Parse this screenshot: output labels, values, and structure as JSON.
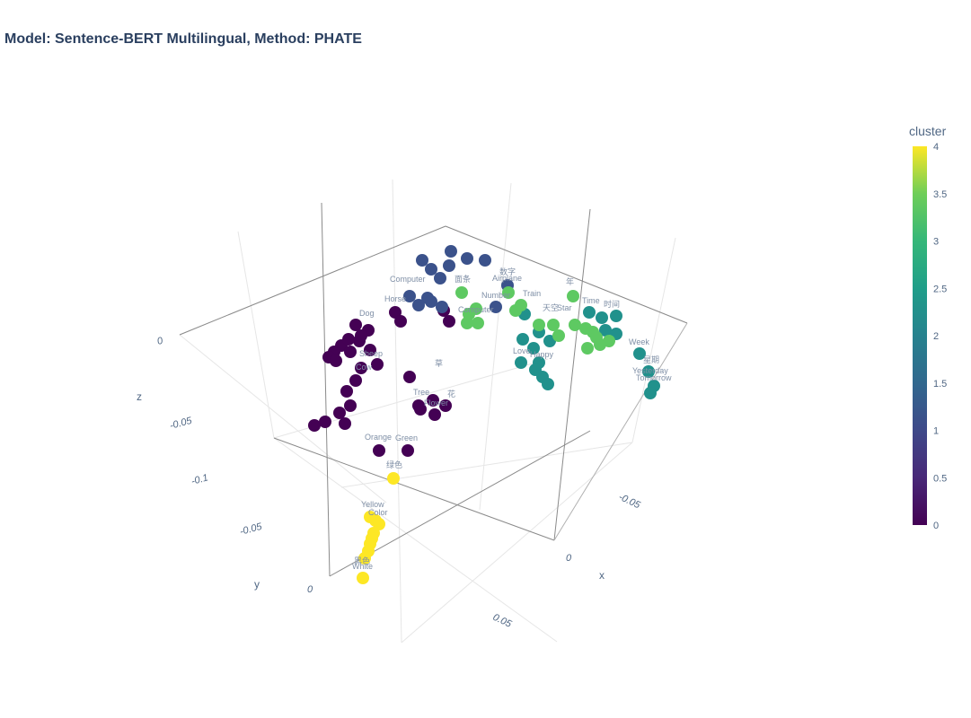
{
  "title": "Model: Sentence-BERT Multilingual, Method: PHATE",
  "chart_data": {
    "type": "scatter3d",
    "title": "Model: Sentence-BERT Multilingual, Method: PHATE",
    "axes": {
      "x": {
        "label": "x",
        "ticks": [
          "-0.05",
          "0",
          "0.05"
        ]
      },
      "y": {
        "label": "y",
        "ticks": [
          "-0.1",
          "-0.05",
          "0"
        ]
      },
      "z": {
        "label": "z",
        "ticks": [
          "-0.05",
          "0"
        ]
      }
    },
    "colorbar": {
      "title": "cluster",
      "min": 0,
      "max": 4,
      "ticks": [
        "0",
        "0.5",
        "1",
        "1.5",
        "2",
        "2.5",
        "3",
        "3.5",
        "4"
      ]
    },
    "marker_colors": {
      "0": "#440154",
      "1": "#3b528b",
      "2": "#21918c",
      "3": "#5ec962",
      "4": "#fde725"
    },
    "labeled_points": [
      {
        "label": "Dog",
        "cluster": 0
      },
      {
        "label": "Horse",
        "cluster": 0
      },
      {
        "label": "Sheep",
        "cluster": 0
      },
      {
        "label": "Cow",
        "cluster": 0
      },
      {
        "label": "Tree",
        "cluster": 0
      },
      {
        "label": "Flower",
        "cluster": 0
      },
      {
        "label": "草",
        "cluster": 0
      },
      {
        "label": "花",
        "cluster": 0
      },
      {
        "label": "Orange",
        "cluster": 0
      },
      {
        "label": "Green",
        "cluster": 0
      },
      {
        "label": "Computer",
        "cluster": 1
      },
      {
        "label": "Number",
        "cluster": 1
      },
      {
        "label": "Airplane",
        "cluster": 1
      },
      {
        "label": "数字",
        "cluster": 1
      },
      {
        "label": "Train",
        "cluster": 1
      },
      {
        "label": "Love",
        "cluster": 2
      },
      {
        "label": "Week",
        "cluster": 2
      },
      {
        "label": "Yesterday",
        "cluster": 2
      },
      {
        "label": "Tomorrow",
        "cluster": 2
      },
      {
        "label": "星期",
        "cluster": 2
      },
      {
        "label": "Time",
        "cluster": 2
      },
      {
        "label": "时间",
        "cluster": 2
      },
      {
        "label": "Happy",
        "cluster": 2
      },
      {
        "label": "面条",
        "cluster": 3
      },
      {
        "label": "年",
        "cluster": 3
      },
      {
        "label": "天空",
        "cluster": 3
      },
      {
        "label": "Star",
        "cluster": 3
      },
      {
        "label": "Computer",
        "cluster": 3
      },
      {
        "label": "绿色",
        "cluster": 4
      },
      {
        "label": "Yellow",
        "cluster": 4
      },
      {
        "label": "Color",
        "cluster": 4
      },
      {
        "label": "White",
        "cluster": 4
      },
      {
        "label": "黑色",
        "cluster": 4
      }
    ]
  }
}
